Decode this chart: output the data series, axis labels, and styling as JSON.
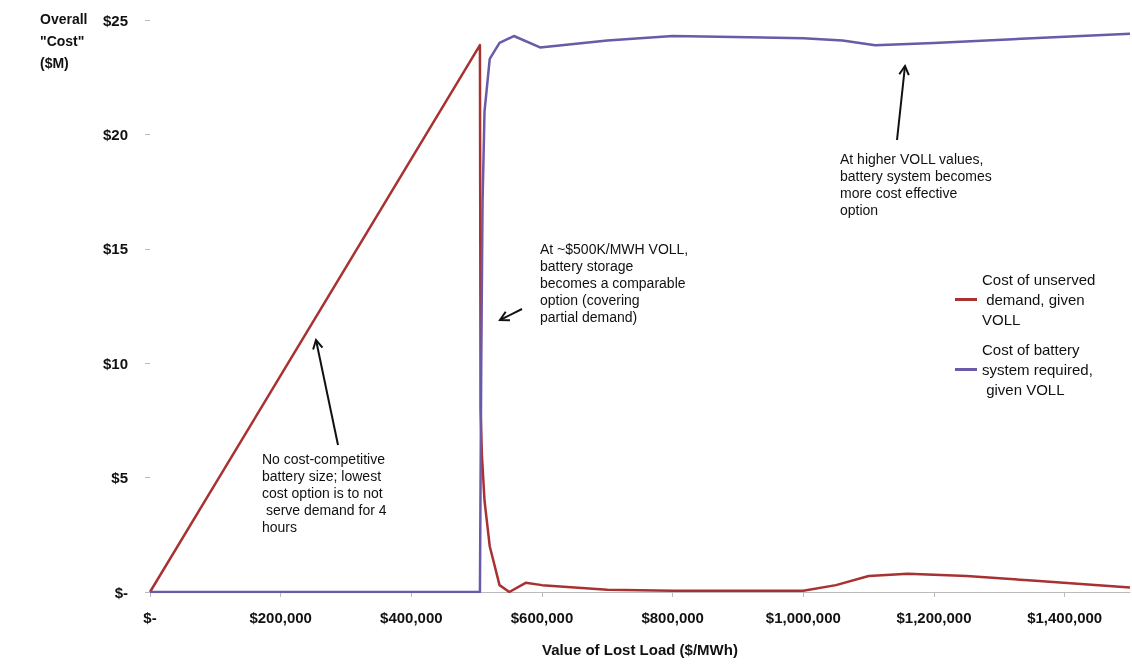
{
  "chart_data": {
    "type": "line",
    "ylabel": "Overall \"Cost\" ($M)",
    "xlabel": "Value of Lost Load ($/MWh)",
    "xlim": [
      0,
      1500000
    ],
    "xticks": [
      {
        "value": 0,
        "label": "$-"
      },
      {
        "value": 200000,
        "label": "$200,000"
      },
      {
        "value": 400000,
        "label": "$400,000"
      },
      {
        "value": 600000,
        "label": "$600,000"
      },
      {
        "value": 800000,
        "label": "$800,000"
      },
      {
        "value": 1000000,
        "label": "$1,000,000"
      },
      {
        "value": 1200000,
        "label": "$1,200,000"
      },
      {
        "value": 1400000,
        "label": "$1,400,000"
      }
    ],
    "ylim": [
      0,
      25
    ],
    "yticks": [
      {
        "value": 0,
        "label": "$-"
      },
      {
        "value": 5,
        "label": "$5"
      },
      {
        "value": 10,
        "label": "$10"
      },
      {
        "value": 15,
        "label": "$15"
      },
      {
        "value": 20,
        "label": "$20"
      },
      {
        "value": 25,
        "label": "$25"
      }
    ],
    "grid": false,
    "legend": "right",
    "marker": "none",
    "line_style": "solid",
    "series": [
      {
        "name": "Cost of unserved demand, given VOLL",
        "color": "#a83232",
        "x": [
          0,
          505000,
          506000,
          508000,
          512000,
          520000,
          535000,
          550000,
          575000,
          600000,
          700000,
          800000,
          1000000,
          1050000,
          1100000,
          1160000,
          1250000,
          1350000,
          1500000
        ],
        "values": [
          0,
          23.9,
          8,
          6,
          4,
          2,
          0.3,
          0,
          0.4,
          0.3,
          0.1,
          0.05,
          0.05,
          0.3,
          0.7,
          0.8,
          0.7,
          0.5,
          0.2
        ]
      },
      {
        "name": "Cost of battery system required, given VOLL",
        "color": "#6a5aa8",
        "x": [
          0,
          505000,
          507000,
          509000,
          512000,
          520000,
          535000,
          557000,
          597000,
          700000,
          800000,
          1000000,
          1060000,
          1110000,
          1200000,
          1350000,
          1500000
        ],
        "values": [
          0,
          0,
          10,
          17,
          21,
          23.3,
          24,
          24.3,
          23.8,
          24.1,
          24.3,
          24.2,
          24.1,
          23.9,
          24,
          24.2,
          24.4
        ]
      }
    ],
    "annotations": [
      "No cost-competitive battery size; lowest cost option is to not serve demand for 4 hours",
      "At ~$500K/MWH VOLL, battery storage becomes a comparable option (covering partial demand)",
      "At higher VOLL values, battery system becomes more cost effective option"
    ]
  }
}
